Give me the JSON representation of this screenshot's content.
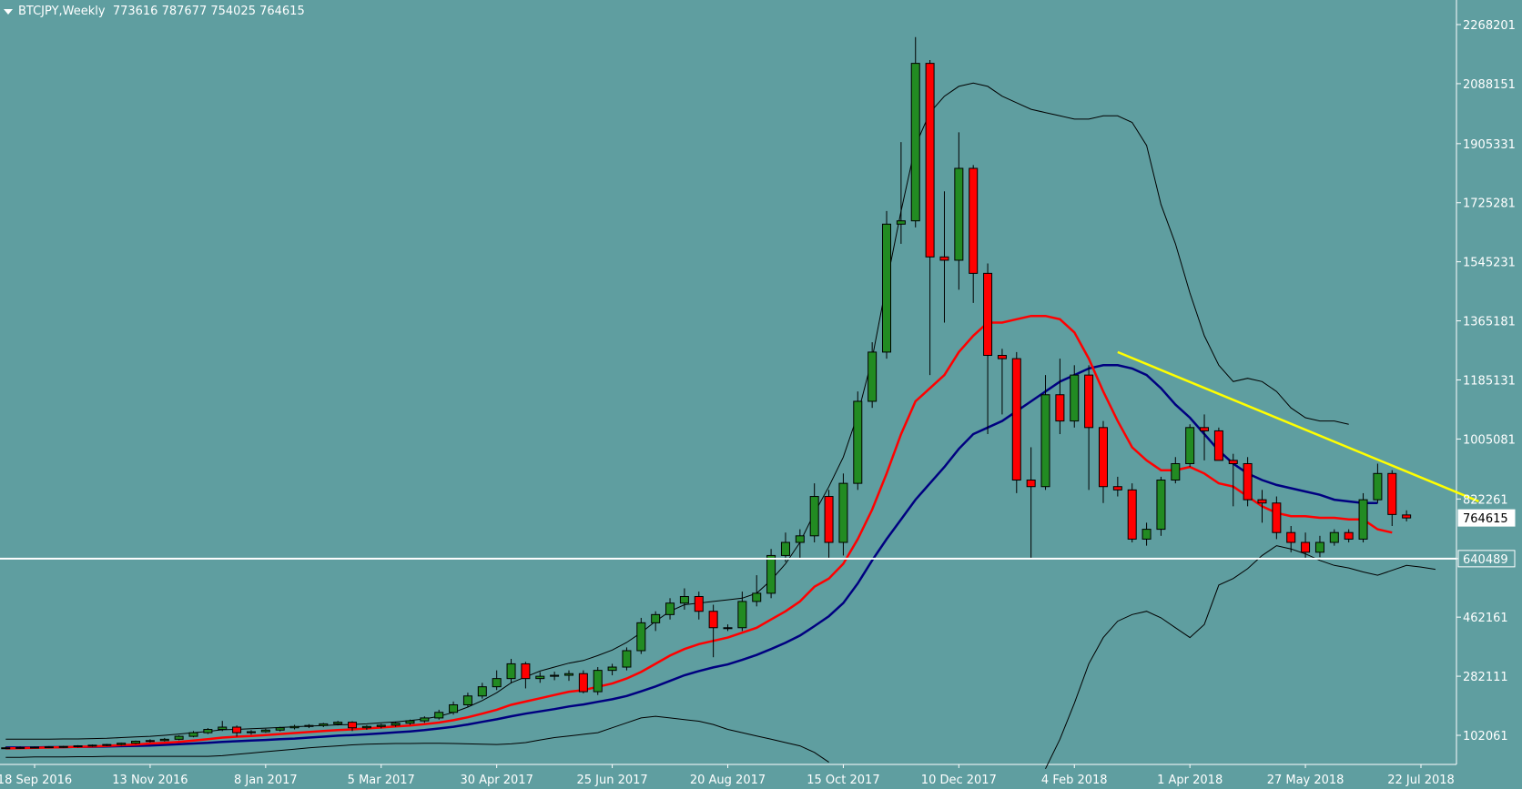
{
  "header": {
    "menu_icon": "triangle-down-icon",
    "symbol_timeframe": "BTCJPY,Weekly",
    "ohlc": "773616 787677 754025 764615"
  },
  "colors": {
    "background": "#5f9ea0",
    "bull_candle": "#228b22",
    "bear_candle": "#ff0000",
    "wick": "#000000",
    "ma_fast": "#ff0000",
    "ma_slow": "#000080",
    "bollinger": "#000000",
    "trendline": "#ffff00",
    "support_line": "#ffffff",
    "axis_text": "#ffffff"
  },
  "chart_data": {
    "type": "candlestick",
    "title": "",
    "ylim": [
      0,
      2300000
    ],
    "price_axis_ticks": [
      "2268201",
      "2088151",
      "1905331",
      "1725281",
      "1545231",
      "1365181",
      "1185131",
      "1005081",
      "822261",
      "640489",
      "462161",
      "282111",
      "102061"
    ],
    "price_axis_values": [
      2268201,
      2088151,
      1905331,
      1725281,
      1545231,
      1365181,
      1185131,
      1005081,
      822261,
      640489,
      462161,
      282111,
      102061
    ],
    "current_price_label": "764615",
    "current_price": 764615,
    "time_axis_labels": [
      "18 Sep 2016",
      "13 Nov 2016",
      "8 Jan 2017",
      "5 Mar 2017",
      "30 Apr 2017",
      "25 Jun 2017",
      "20 Aug 2017",
      "15 Oct 2017",
      "10 Dec 2017",
      "4 Feb 2018",
      "1 Apr 2018",
      "27 May 2018",
      "22 Jul 2018"
    ],
    "time_axis_bar_index": [
      0,
      8,
      16,
      24,
      32,
      40,
      48,
      56,
      64,
      72,
      80,
      88,
      96
    ],
    "first_bar_index": -2,
    "candles": [
      {
        "o": 63000,
        "h": 67000,
        "l": 60000,
        "c": 64000
      },
      {
        "o": 64000,
        "h": 68000,
        "l": 61000,
        "c": 65000
      },
      {
        "o": 65000,
        "h": 68000,
        "l": 62000,
        "c": 66000
      },
      {
        "o": 66000,
        "h": 69000,
        "l": 63000,
        "c": 67000
      },
      {
        "o": 67000,
        "h": 70000,
        "l": 64000,
        "c": 68000
      },
      {
        "o": 68000,
        "h": 72000,
        "l": 65000,
        "c": 70000
      },
      {
        "o": 70000,
        "h": 74000,
        "l": 67000,
        "c": 72000
      },
      {
        "o": 72000,
        "h": 76000,
        "l": 69000,
        "c": 74000
      },
      {
        "o": 74000,
        "h": 80000,
        "l": 71000,
        "c": 78000
      },
      {
        "o": 78000,
        "h": 86000,
        "l": 75000,
        "c": 84000
      },
      {
        "o": 84000,
        "h": 90000,
        "l": 80000,
        "c": 86000
      },
      {
        "o": 86000,
        "h": 94000,
        "l": 83000,
        "c": 90000
      },
      {
        "o": 90000,
        "h": 102000,
        "l": 87000,
        "c": 99000
      },
      {
        "o": 99000,
        "h": 115000,
        "l": 96000,
        "c": 110000
      },
      {
        "o": 110000,
        "h": 124000,
        "l": 106000,
        "c": 120000
      },
      {
        "o": 120000,
        "h": 146000,
        "l": 115000,
        "c": 127000
      },
      {
        "o": 127000,
        "h": 132000,
        "l": 98000,
        "c": 110000
      },
      {
        "o": 110000,
        "h": 118000,
        "l": 104000,
        "c": 113000
      },
      {
        "o": 113000,
        "h": 122000,
        "l": 110000,
        "c": 118000
      },
      {
        "o": 118000,
        "h": 128000,
        "l": 114000,
        "c": 125000
      },
      {
        "o": 125000,
        "h": 134000,
        "l": 120000,
        "c": 129000
      },
      {
        "o": 129000,
        "h": 136000,
        "l": 124000,
        "c": 132000
      },
      {
        "o": 132000,
        "h": 140000,
        "l": 127000,
        "c": 137000
      },
      {
        "o": 137000,
        "h": 146000,
        "l": 132000,
        "c": 142000
      },
      {
        "o": 142000,
        "h": 145000,
        "l": 115000,
        "c": 125000
      },
      {
        "o": 125000,
        "h": 133000,
        "l": 119000,
        "c": 129000
      },
      {
        "o": 129000,
        "h": 137000,
        "l": 123000,
        "c": 133000
      },
      {
        "o": 133000,
        "h": 143000,
        "l": 128000,
        "c": 139000
      },
      {
        "o": 139000,
        "h": 150000,
        "l": 134000,
        "c": 146000
      },
      {
        "o": 146000,
        "h": 160000,
        "l": 140000,
        "c": 155000
      },
      {
        "o": 155000,
        "h": 180000,
        "l": 150000,
        "c": 172000
      },
      {
        "o": 172000,
        "h": 205000,
        "l": 165000,
        "c": 195000
      },
      {
        "o": 195000,
        "h": 232000,
        "l": 188000,
        "c": 222000
      },
      {
        "o": 222000,
        "h": 262000,
        "l": 214000,
        "c": 250000
      },
      {
        "o": 250000,
        "h": 300000,
        "l": 240000,
        "c": 275000
      },
      {
        "o": 275000,
        "h": 335000,
        "l": 260000,
        "c": 320000
      },
      {
        "o": 320000,
        "h": 326000,
        "l": 245000,
        "c": 275000
      },
      {
        "o": 275000,
        "h": 295000,
        "l": 262000,
        "c": 282000
      },
      {
        "o": 282000,
        "h": 296000,
        "l": 270000,
        "c": 285000
      },
      {
        "o": 285000,
        "h": 300000,
        "l": 268000,
        "c": 290000
      },
      {
        "o": 290000,
        "h": 300000,
        "l": 230000,
        "c": 235000
      },
      {
        "o": 235000,
        "h": 310000,
        "l": 225000,
        "c": 300000
      },
      {
        "o": 300000,
        "h": 320000,
        "l": 285000,
        "c": 310000
      },
      {
        "o": 310000,
        "h": 370000,
        "l": 300000,
        "c": 360000
      },
      {
        "o": 360000,
        "h": 460000,
        "l": 350000,
        "c": 445000
      },
      {
        "o": 445000,
        "h": 480000,
        "l": 420000,
        "c": 470000
      },
      {
        "o": 470000,
        "h": 520000,
        "l": 455000,
        "c": 505000
      },
      {
        "o": 505000,
        "h": 550000,
        "l": 485000,
        "c": 525000
      },
      {
        "o": 525000,
        "h": 540000,
        "l": 455000,
        "c": 480000
      },
      {
        "o": 480000,
        "h": 500000,
        "l": 340000,
        "c": 430000
      },
      {
        "o": 430000,
        "h": 440000,
        "l": 420000,
        "c": 430000
      },
      {
        "o": 430000,
        "h": 540000,
        "l": 420000,
        "c": 510000
      },
      {
        "o": 510000,
        "h": 590000,
        "l": 495000,
        "c": 535000
      },
      {
        "o": 535000,
        "h": 670000,
        "l": 520000,
        "c": 650000
      },
      {
        "o": 650000,
        "h": 720000,
        "l": 630000,
        "c": 690000
      },
      {
        "o": 690000,
        "h": 730000,
        "l": 640000,
        "c": 710000
      },
      {
        "o": 710000,
        "h": 870000,
        "l": 690000,
        "c": 830000
      },
      {
        "o": 830000,
        "h": 850000,
        "l": 640000,
        "c": 690000
      },
      {
        "o": 690000,
        "h": 900000,
        "l": 650000,
        "c": 870000
      },
      {
        "o": 870000,
        "h": 1150000,
        "l": 850000,
        "c": 1120000
      },
      {
        "o": 1120000,
        "h": 1300000,
        "l": 1100000,
        "c": 1270000
      },
      {
        "o": 1270000,
        "h": 1700000,
        "l": 1250000,
        "c": 1660000
      },
      {
        "o": 1660000,
        "h": 1910000,
        "l": 1600000,
        "c": 1670000
      },
      {
        "o": 1670000,
        "h": 2230000,
        "l": 1650000,
        "c": 2150000
      },
      {
        "o": 2150000,
        "h": 2160000,
        "l": 1200000,
        "c": 1560000
      },
      {
        "o": 1560000,
        "h": 1760000,
        "l": 1360000,
        "c": 1550000
      },
      {
        "o": 1550000,
        "h": 1940000,
        "l": 1460000,
        "c": 1830000
      },
      {
        "o": 1830000,
        "h": 1840000,
        "l": 1420000,
        "c": 1510000
      },
      {
        "o": 1510000,
        "h": 1540000,
        "l": 1020000,
        "c": 1260000
      },
      {
        "o": 1260000,
        "h": 1280000,
        "l": 1080000,
        "c": 1250000
      },
      {
        "o": 1250000,
        "h": 1270000,
        "l": 840000,
        "c": 880000
      },
      {
        "o": 880000,
        "h": 980000,
        "l": 640000,
        "c": 860000
      },
      {
        "o": 860000,
        "h": 1200000,
        "l": 850000,
        "c": 1140000
      },
      {
        "o": 1140000,
        "h": 1250000,
        "l": 1020000,
        "c": 1060000
      },
      {
        "o": 1060000,
        "h": 1230000,
        "l": 1040000,
        "c": 1200000
      },
      {
        "o": 1200000,
        "h": 1230000,
        "l": 850000,
        "c": 1040000
      },
      {
        "o": 1040000,
        "h": 1060000,
        "l": 810000,
        "c": 860000
      },
      {
        "o": 860000,
        "h": 890000,
        "l": 830000,
        "c": 850000
      },
      {
        "o": 850000,
        "h": 870000,
        "l": 690000,
        "c": 700000
      },
      {
        "o": 700000,
        "h": 750000,
        "l": 680000,
        "c": 730000
      },
      {
        "o": 730000,
        "h": 890000,
        "l": 710000,
        "c": 880000
      },
      {
        "o": 880000,
        "h": 950000,
        "l": 870000,
        "c": 930000
      },
      {
        "o": 930000,
        "h": 1050000,
        "l": 920000,
        "c": 1040000
      },
      {
        "o": 1040000,
        "h": 1080000,
        "l": 940000,
        "c": 1030000
      },
      {
        "o": 1030000,
        "h": 1040000,
        "l": 940000,
        "c": 940000
      },
      {
        "o": 940000,
        "h": 960000,
        "l": 800000,
        "c": 930000
      },
      {
        "o": 930000,
        "h": 950000,
        "l": 800000,
        "c": 820000
      },
      {
        "o": 820000,
        "h": 850000,
        "l": 750000,
        "c": 810000
      },
      {
        "o": 810000,
        "h": 830000,
        "l": 700000,
        "c": 720000
      },
      {
        "o": 720000,
        "h": 740000,
        "l": 660000,
        "c": 690000
      },
      {
        "o": 690000,
        "h": 720000,
        "l": 640000,
        "c": 660000
      },
      {
        "o": 660000,
        "h": 710000,
        "l": 645000,
        "c": 690000
      },
      {
        "o": 690000,
        "h": 730000,
        "l": 680000,
        "c": 720000
      },
      {
        "o": 720000,
        "h": 730000,
        "l": 690000,
        "c": 700000
      },
      {
        "o": 700000,
        "h": 840000,
        "l": 690000,
        "c": 820000
      },
      {
        "o": 820000,
        "h": 930000,
        "l": 810000,
        "c": 900000
      },
      {
        "o": 900000,
        "h": 910000,
        "l": 740000,
        "c": 775000
      },
      {
        "o": 773616,
        "h": 787677,
        "l": 754025,
        "c": 764615
      }
    ],
    "ma_fast_red": [
      62000,
      63000,
      64000,
      65000,
      66000,
      67000,
      68000,
      70000,
      72000,
      74000,
      77000,
      79000,
      82000,
      86000,
      90000,
      95000,
      98000,
      100000,
      103000,
      106000,
      109000,
      112000,
      115000,
      118000,
      120000,
      123000,
      126000,
      129000,
      132000,
      136000,
      141000,
      148000,
      157000,
      168000,
      180000,
      195000,
      205000,
      215000,
      225000,
      235000,
      240000,
      250000,
      260000,
      275000,
      295000,
      320000,
      345000,
      365000,
      380000,
      390000,
      400000,
      415000,
      430000,
      455000,
      480000,
      510000,
      555000,
      580000,
      625000,
      700000,
      790000,
      900000,
      1020000,
      1120000,
      1160000,
      1200000,
      1270000,
      1320000,
      1360000,
      1360000,
      1370000,
      1380000,
      1380000,
      1370000,
      1330000,
      1250000,
      1150000,
      1060000,
      980000,
      940000,
      910000,
      910000,
      920000,
      900000,
      870000,
      860000,
      830000,
      800000,
      780000,
      770000,
      770000,
      765000,
      765000,
      760000,
      760000,
      730000,
      720000
    ],
    "ma_slow_navy": [
      65000,
      65000,
      65000,
      66000,
      66000,
      67000,
      67000,
      68000,
      69000,
      70000,
      71000,
      73000,
      75000,
      77000,
      79000,
      82000,
      84000,
      86000,
      88000,
      90000,
      92000,
      95000,
      98000,
      101000,
      103000,
      105000,
      108000,
      111000,
      114000,
      118000,
      123000,
      128000,
      135000,
      143000,
      151000,
      160000,
      168000,
      175000,
      182000,
      190000,
      196000,
      204000,
      212000,
      222000,
      236000,
      251000,
      268000,
      285000,
      298000,
      309000,
      318000,
      332000,
      347000,
      365000,
      384000,
      406000,
      435000,
      465000,
      505000,
      565000,
      635000,
      700000,
      760000,
      820000,
      870000,
      920000,
      975000,
      1020000,
      1040000,
      1060000,
      1090000,
      1120000,
      1150000,
      1180000,
      1200000,
      1220000,
      1230000,
      1230000,
      1220000,
      1200000,
      1160000,
      1110000,
      1070000,
      1020000,
      970000,
      930000,
      900000,
      880000,
      865000,
      855000,
      845000,
      835000,
      820000,
      815000,
      810000,
      810000
    ],
    "bollinger_upper": [
      90000,
      90000,
      90000,
      90000,
      91000,
      91000,
      92000,
      93000,
      95000,
      97000,
      99000,
      102000,
      106000,
      110000,
      114000,
      119000,
      120000,
      122000,
      124000,
      126000,
      128000,
      130000,
      132000,
      134000,
      135000,
      137000,
      140000,
      143000,
      147000,
      152000,
      160000,
      172000,
      188000,
      208000,
      232000,
      262000,
      280000,
      298000,
      310000,
      322000,
      330000,
      345000,
      362000,
      385000,
      415000,
      450000,
      480000,
      500000,
      505000,
      510000,
      515000,
      520000,
      535000,
      575000,
      625000,
      690000,
      780000,
      860000,
      950000,
      1080000,
      1250000,
      1480000,
      1700000,
      1900000,
      2000000,
      2050000,
      2080000,
      2090000,
      2080000,
      2050000,
      2030000,
      2010000,
      2000000,
      1990000,
      1980000,
      1980000,
      1990000,
      1990000,
      1970000,
      1900000,
      1720000,
      1600000,
      1450000,
      1320000,
      1230000,
      1180000,
      1190000,
      1180000,
      1150000,
      1100000,
      1070000,
      1060000,
      1060000,
      1050000
    ],
    "bollinger_lower": [
      35000,
      35000,
      36000,
      36000,
      36000,
      37000,
      37000,
      38000,
      38000,
      38000,
      38000,
      38000,
      38000,
      38000,
      38000,
      40000,
      44000,
      48000,
      52000,
      56000,
      60000,
      64000,
      67000,
      70000,
      73000,
      75000,
      76000,
      77000,
      77000,
      78000,
      78000,
      77000,
      76000,
      75000,
      74000,
      76000,
      80000,
      88000,
      95000,
      100000,
      105000,
      110000,
      125000,
      140000,
      155000,
      160000,
      155000,
      150000,
      145000,
      135000,
      120000,
      110000,
      100000,
      90000,
      80000,
      70000,
      50000,
      20000
    ],
    "bollinger_lower_tail": [
      {
        "bar": 70,
        "v": 0
      },
      {
        "bar": 71,
        "v": 90000
      },
      {
        "bar": 72,
        "v": 200000
      },
      {
        "bar": 73,
        "v": 320000
      },
      {
        "bar": 74,
        "v": 400000
      },
      {
        "bar": 75,
        "v": 450000
      },
      {
        "bar": 76,
        "v": 470000
      },
      {
        "bar": 77,
        "v": 480000
      },
      {
        "bar": 78,
        "v": 460000
      },
      {
        "bar": 79,
        "v": 430000
      },
      {
        "bar": 80,
        "v": 400000
      },
      {
        "bar": 81,
        "v": 440000
      },
      {
        "bar": 82,
        "v": 560000
      },
      {
        "bar": 83,
        "v": 580000
      },
      {
        "bar": 84,
        "v": 610000
      },
      {
        "bar": 85,
        "v": 650000
      },
      {
        "bar": 86,
        "v": 680000
      },
      {
        "bar": 87,
        "v": 670000
      },
      {
        "bar": 88,
        "v": 655000
      },
      {
        "bar": 89,
        "v": 635000
      },
      {
        "bar": 90,
        "v": 620000
      },
      {
        "bar": 91,
        "v": 612000
      },
      {
        "bar": 92,
        "v": 600000
      },
      {
        "bar": 93,
        "v": 590000
      },
      {
        "bar": 94,
        "v": 605000
      },
      {
        "bar": 95,
        "v": 620000
      },
      {
        "bar": 96,
        "v": 615000
      },
      {
        "bar": 97,
        "v": 608000
      }
    ],
    "trendline": [
      {
        "bar": 75,
        "v": 1270000
      },
      {
        "bar": 100,
        "v": 815000
      }
    ],
    "support_level": 640489
  }
}
